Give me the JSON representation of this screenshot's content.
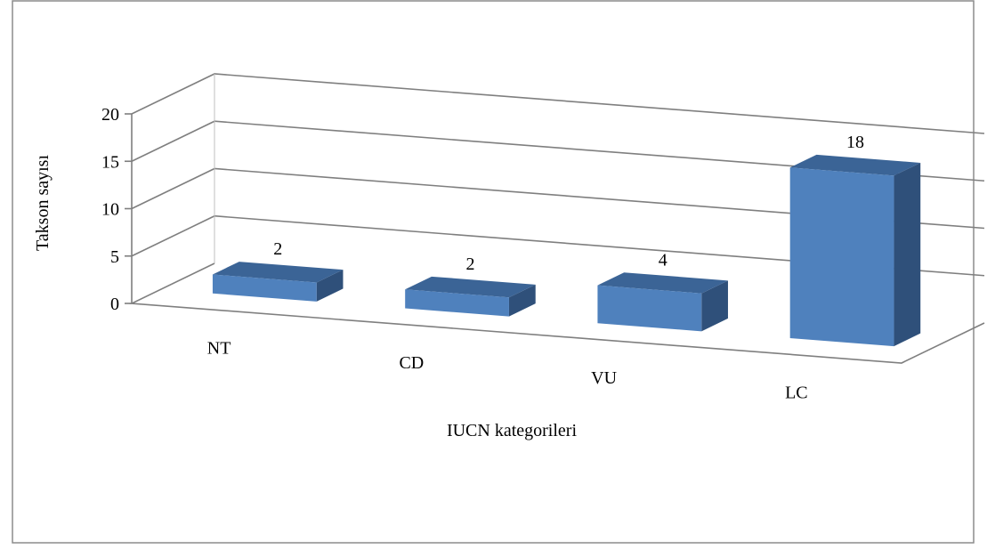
{
  "chart_data": {
    "type": "bar",
    "style": "3d-column",
    "categories": [
      "NT",
      "CD",
      "VU",
      "LC"
    ],
    "values": [
      2,
      2,
      4,
      18
    ],
    "data_labels": [
      "2",
      "2",
      "4",
      "18"
    ],
    "title": "",
    "xlabel": "IUCN kategorileri",
    "ylabel": "Takson sayısı",
    "ylim": [
      0,
      20
    ],
    "yticks": [
      "0",
      "5",
      "10",
      "15",
      "20"
    ],
    "grid": true,
    "legend": "none",
    "colors": {
      "bar_front": "#4f81bd",
      "bar_top": "#3b6496",
      "bar_side": "#2f507a",
      "gridline": "#7f7f7f",
      "frame": "#7f7f7f"
    }
  }
}
